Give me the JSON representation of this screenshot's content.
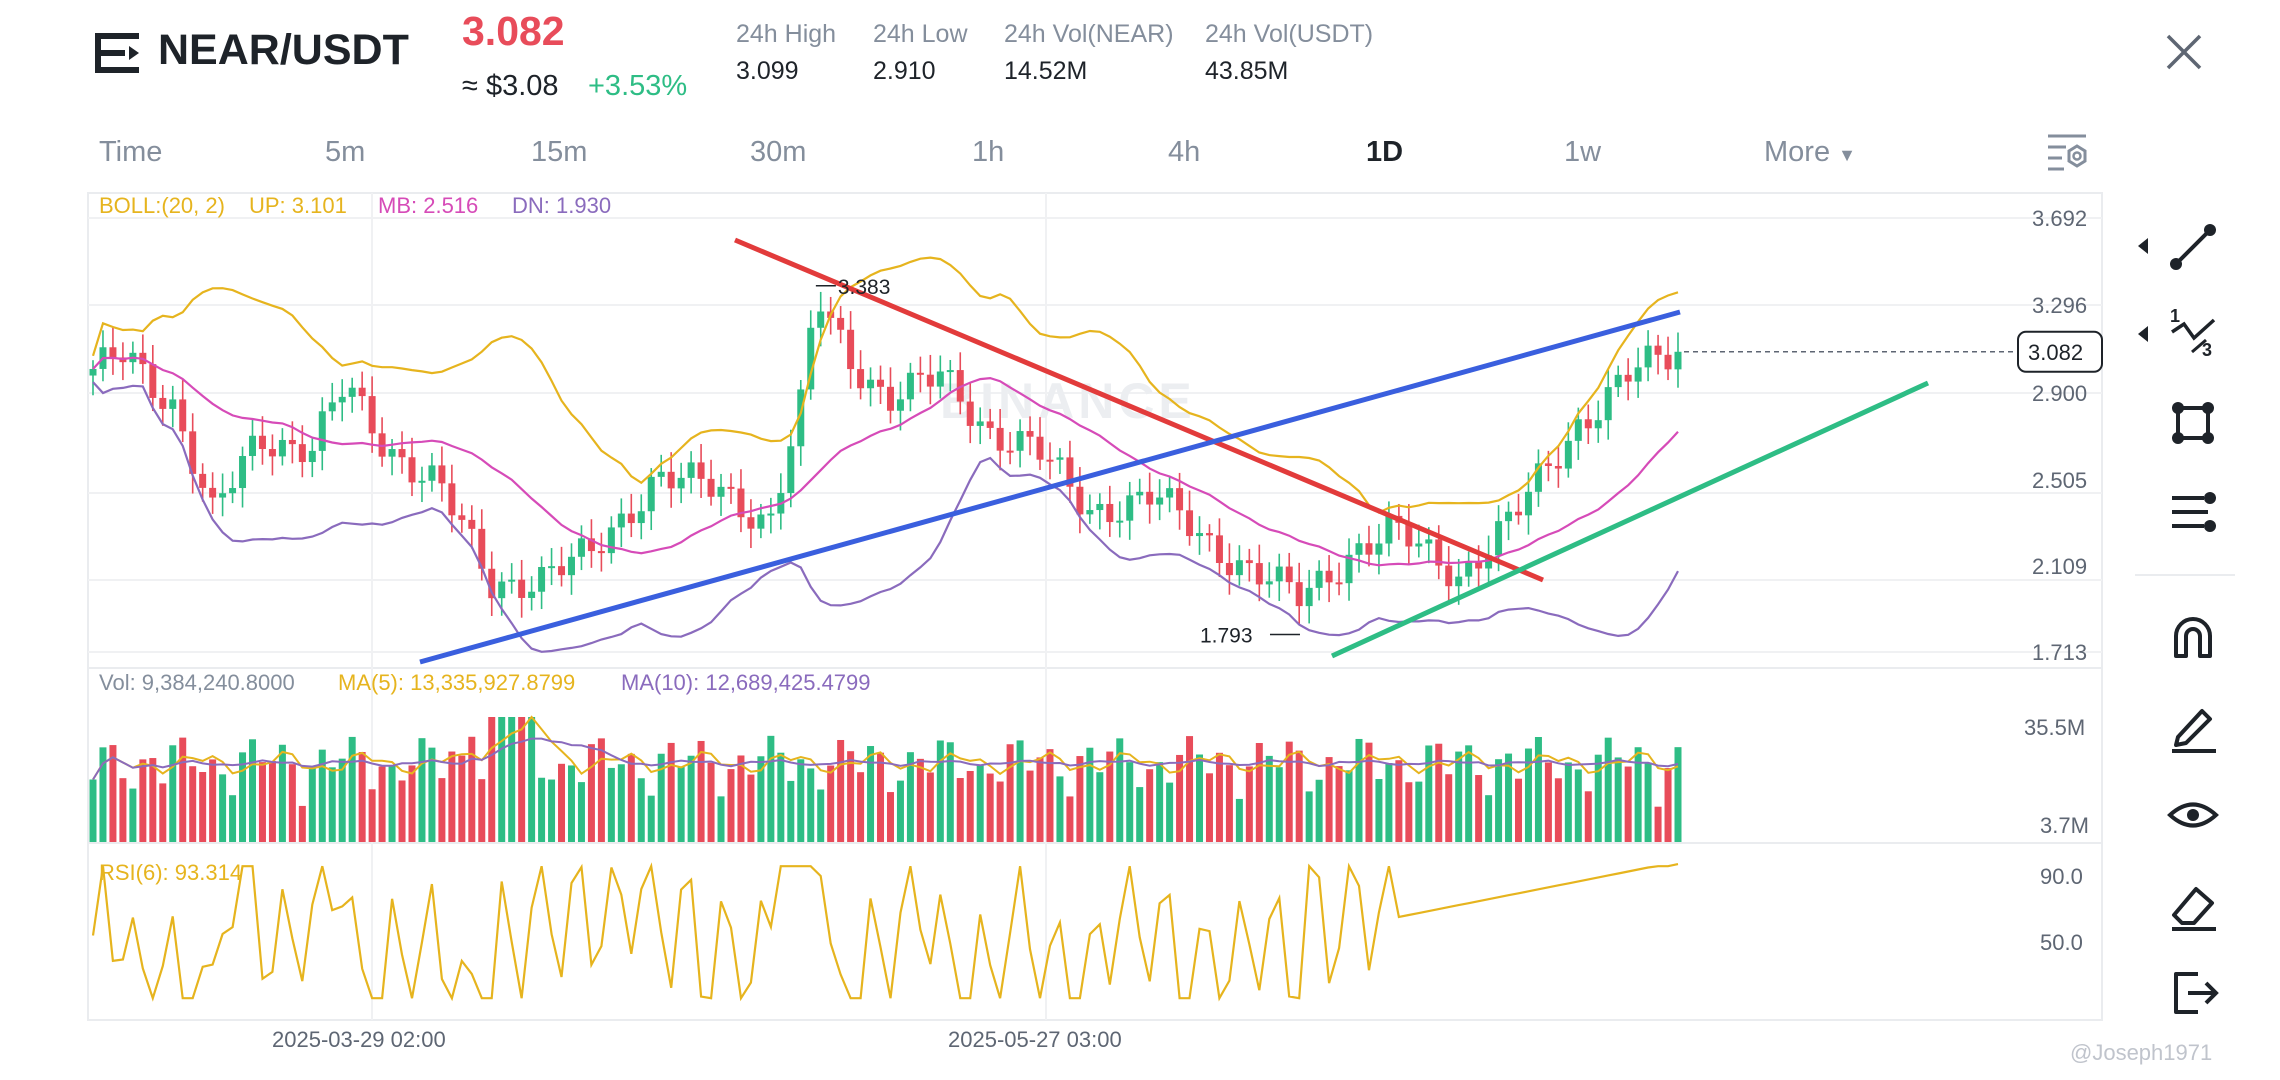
{
  "header": {
    "pair": "NEAR/USDT",
    "price": "3.082",
    "usd_price": "≈ $3.08",
    "change": "+3.53%",
    "stats": [
      {
        "label": "24h High",
        "value": "3.099"
      },
      {
        "label": "24h Low",
        "value": "2.910"
      },
      {
        "label": "24h Vol(NEAR)",
        "value": "14.52M"
      },
      {
        "label": "24h Vol(USDT)",
        "value": "43.85M"
      }
    ]
  },
  "timeframes": [
    "Time",
    "5m",
    "15m",
    "30m",
    "1h",
    "4h",
    "1D",
    "1w",
    "More"
  ],
  "active_timeframe": "1D",
  "indicators": {
    "boll": {
      "label": "BOLL:(20, 2)",
      "up": "UP: 3.101",
      "mb": "MB: 2.516",
      "dn": "DN: 1.930"
    },
    "vol": {
      "label": "Vol: 9,384,240.8000",
      "ma5": "MA(5): 13,335,927.8799",
      "ma10": "MA(10): 12,689,425.4799"
    },
    "rsi": {
      "label": "RSI(6): 93.314"
    }
  },
  "price_axis": [
    "3.692",
    "3.296",
    "2.900",
    "2.505",
    "2.109",
    "1.713"
  ],
  "current_price_tag": "3.082",
  "volume_axis": [
    "35.5M",
    "3.7M"
  ],
  "rsi_axis": [
    "90.0",
    "50.0"
  ],
  "time_axis": [
    "2025-03-29 02:00",
    "2025-05-27 03:00"
  ],
  "annotations": {
    "high": "3.383",
    "low": "1.793"
  },
  "watermark_text": "BINANCE",
  "credit": "@Joseph1971",
  "colors": {
    "up": "#2ebd85",
    "down": "#e84c5a",
    "boll_up": "#e6b41e",
    "boll_mb": "#d64bb8",
    "boll_dn": "#8a6bbd",
    "trend_red": "#e23b3b",
    "trend_blue": "#3a5fde",
    "trend_green": "#2ebd85"
  },
  "tools": [
    "trendline-icon",
    "fibonacci-icon",
    "shape-icon",
    "parallel-lines-icon",
    "magnet-icon",
    "pen-icon",
    "eye-icon",
    "eraser-icon",
    "exit-icon"
  ],
  "chart_data": {
    "type": "candlestick",
    "price_axis_range": [
      1.713,
      3.692
    ],
    "candles_count": 160,
    "last_price": 3.082,
    "period_high": 3.383,
    "period_low": 1.793
  }
}
